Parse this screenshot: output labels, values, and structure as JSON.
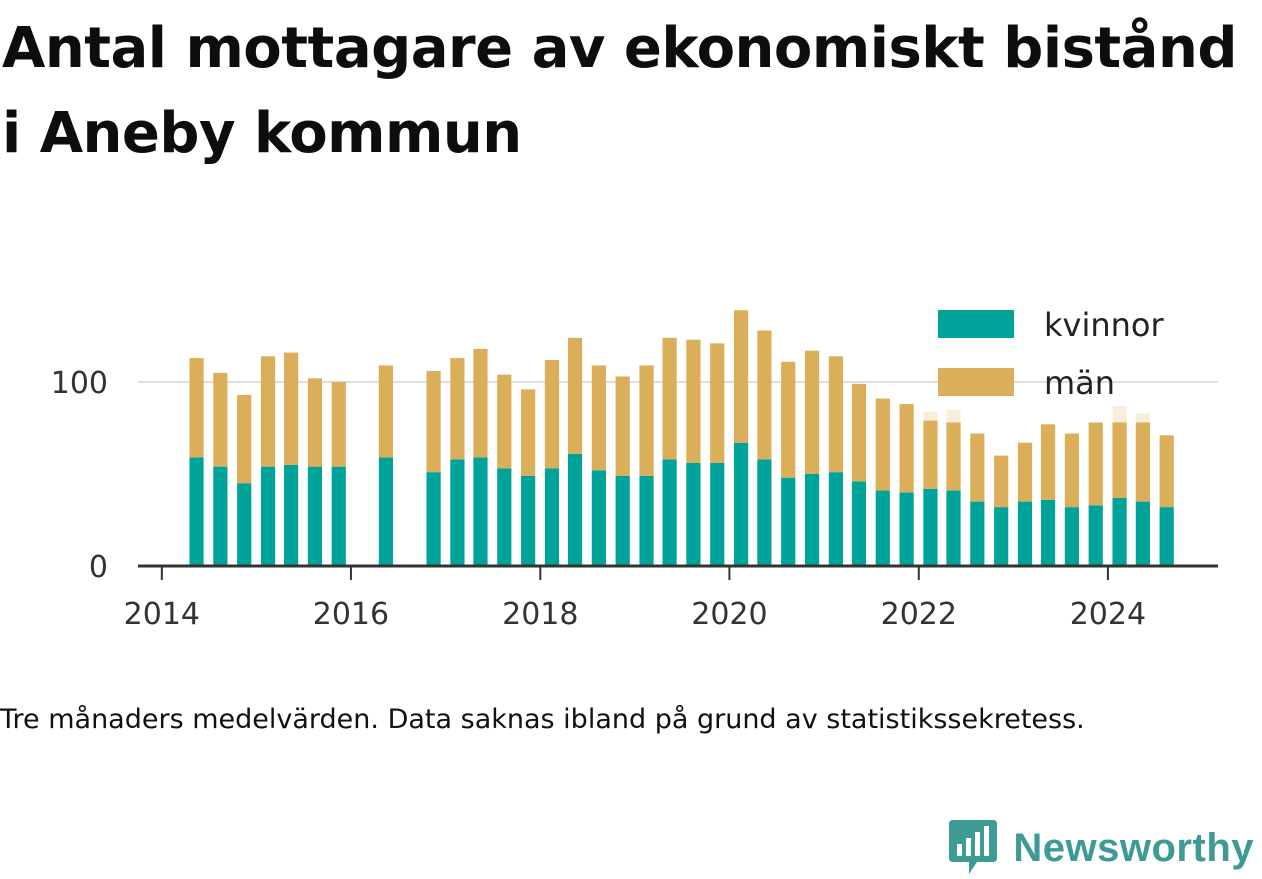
{
  "title": "Antal mottagare av ekonomiskt bistånd i Aneby kommun",
  "caption": "Tre månaders medelvärden. Data saknas ibland på grund av statistikssekretess.",
  "brand": {
    "name": "Newsworthy",
    "icon": "newsworthy-chart-bubble-icon",
    "color": "#3d9a94"
  },
  "chart_data": {
    "type": "bar",
    "stacked": true,
    "x_unit": "date",
    "xlim": [
      "2013-10-01",
      "2025-03-01"
    ],
    "x_ticks": [
      "2014",
      "2016",
      "2018",
      "2020",
      "2022",
      "2024"
    ],
    "x_tick_dates": [
      "2014-01-01",
      "2016-01-01",
      "2018-01-01",
      "2020-01-01",
      "2022-01-01",
      "2024-01-01"
    ],
    "ylim": [
      0,
      150
    ],
    "y_ticks": [
      0,
      100
    ],
    "grid": "horizontal",
    "legend_position": "top-right",
    "x": [
      "2014-05",
      "2014-08",
      "2014-11",
      "2015-02",
      "2015-05",
      "2015-08",
      "2015-11",
      "2016-05",
      "2016-11",
      "2017-02",
      "2017-05",
      "2017-08",
      "2017-11",
      "2018-02",
      "2018-05",
      "2018-08",
      "2018-11",
      "2019-02",
      "2019-05",
      "2019-08",
      "2019-11",
      "2020-02",
      "2020-05",
      "2020-08",
      "2020-11",
      "2021-02",
      "2021-05",
      "2021-08",
      "2021-11",
      "2022-02",
      "2022-05",
      "2022-08",
      "2022-11",
      "2023-02",
      "2023-05",
      "2023-08",
      "2023-11",
      "2024-02",
      "2024-05",
      "2024-08"
    ],
    "series": [
      {
        "name": "kvinnor",
        "color": "#00a39a",
        "values": [
          59,
          54,
          45,
          54,
          55,
          54,
          54,
          59,
          51,
          58,
          59,
          53,
          49,
          53,
          61,
          52,
          49,
          49,
          58,
          56,
          56,
          67,
          58,
          48,
          50,
          51,
          46,
          41,
          40,
          42,
          41,
          35,
          32,
          35,
          36,
          32,
          33,
          37,
          35,
          32
        ]
      },
      {
        "name": "män",
        "color": "#dbae59",
        "values": [
          54,
          51,
          48,
          60,
          61,
          48,
          46,
          50,
          55,
          55,
          59,
          51,
          47,
          59,
          63,
          57,
          54,
          60,
          66,
          67,
          65,
          72,
          70,
          63,
          67,
          63,
          53,
          50,
          48,
          37,
          37,
          37,
          28,
          32,
          41,
          40,
          45,
          41,
          43,
          39
        ]
      }
    ],
    "faded_bars": [
      {
        "x": "2022-02",
        "total": 84
      },
      {
        "x": "2022-05",
        "total": 85
      },
      {
        "x": "2024-02",
        "total": 87
      },
      {
        "x": "2024-05",
        "total": 83
      }
    ]
  }
}
